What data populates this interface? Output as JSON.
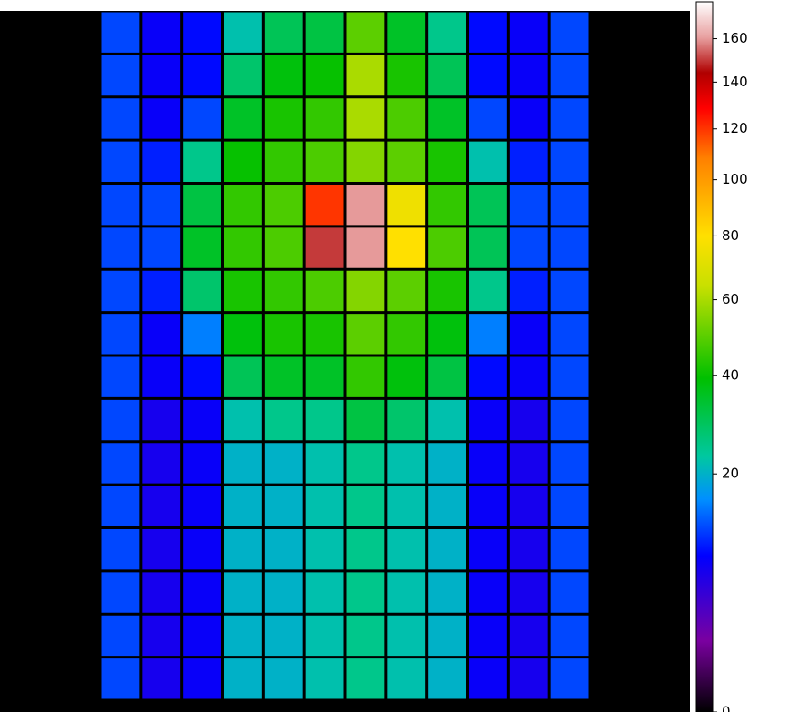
{
  "chart_data": {
    "type": "heatmap",
    "values": [
      [
        12,
        8,
        9,
        22,
        30,
        32,
        50,
        35,
        25,
        9,
        8,
        12
      ],
      [
        12,
        8,
        9,
        28,
        38,
        40,
        60,
        42,
        30,
        9,
        8,
        12
      ],
      [
        12,
        8,
        12,
        35,
        42,
        45,
        60,
        48,
        35,
        12,
        8,
        12
      ],
      [
        12,
        10,
        25,
        40,
        45,
        48,
        55,
        50,
        42,
        22,
        10,
        12
      ],
      [
        12,
        12,
        32,
        45,
        48,
        120,
        160,
        75,
        45,
        30,
        12,
        12
      ],
      [
        12,
        12,
        35,
        45,
        48,
        150,
        160,
        80,
        48,
        30,
        12,
        12
      ],
      [
        12,
        10,
        28,
        42,
        45,
        48,
        55,
        50,
        42,
        25,
        10,
        12
      ],
      [
        12,
        8,
        15,
        38,
        42,
        42,
        50,
        45,
        38,
        15,
        8,
        12
      ],
      [
        12,
        8,
        9,
        30,
        35,
        35,
        45,
        38,
        32,
        9,
        8,
        12
      ],
      [
        12,
        7,
        8,
        22,
        25,
        25,
        32,
        28,
        22,
        8,
        7,
        12
      ],
      [
        12,
        7,
        8,
        20,
        20,
        22,
        25,
        22,
        20,
        8,
        7,
        12
      ],
      [
        12,
        7,
        8,
        20,
        20,
        22,
        25,
        22,
        20,
        8,
        7,
        12
      ],
      [
        12,
        7,
        8,
        20,
        20,
        22,
        25,
        22,
        20,
        8,
        7,
        12
      ],
      [
        12,
        7,
        8,
        20,
        20,
        22,
        25,
        22,
        20,
        8,
        7,
        12
      ],
      [
        12,
        7,
        8,
        20,
        20,
        22,
        25,
        22,
        20,
        8,
        7,
        12
      ],
      [
        12,
        7,
        8,
        20,
        20,
        22,
        25,
        22,
        20,
        8,
        7,
        12
      ]
    ],
    "colorbar": {
      "scale": "sqrt",
      "ylim": [
        0,
        178
      ],
      "yticks": [
        0,
        20,
        40,
        60,
        80,
        100,
        120,
        140,
        160
      ]
    }
  }
}
